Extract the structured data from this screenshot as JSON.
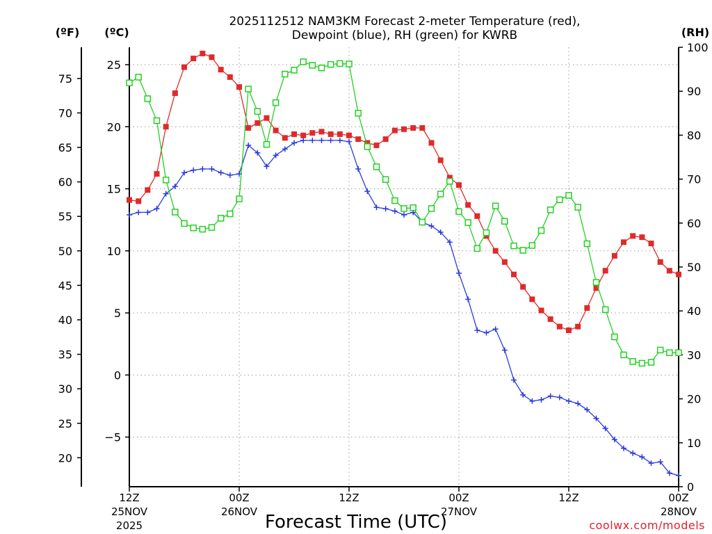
{
  "chart_data": {
    "type": "line",
    "title_lines": [
      "2025112512 NAM3KM Forecast 2-meter Temperature (red),",
      "Dewpoint (blue), RH (green) for KWRB"
    ],
    "xlabel": "Forecast Time (UTC)",
    "credit": "coolwx.com/models",
    "units": {
      "fahrenheit": "(ºF)",
      "celsius": "(ºC)",
      "rh": "(RH)"
    },
    "x_range_hours": [
      0,
      60
    ],
    "celsius_range": [
      -9,
      26.4
    ],
    "rh_range": [
      0,
      100
    ],
    "celsius_ticks": [
      -5,
      0,
      5,
      10,
      15,
      20,
      25
    ],
    "fahrenheit_ticks": [
      20,
      25,
      30,
      35,
      40,
      45,
      50,
      55,
      60,
      65,
      70,
      75
    ],
    "rh_ticks": [
      0,
      10,
      20,
      30,
      40,
      50,
      60,
      70,
      80,
      90,
      100
    ],
    "x_ticks": [
      {
        "hour": 0,
        "label": "12Z",
        "sub": "25NOV",
        "year": "2025"
      },
      {
        "hour": 12,
        "label": "00Z",
        "sub": "26NOV",
        "year": ""
      },
      {
        "hour": 24,
        "label": "12Z",
        "sub": "",
        "year": ""
      },
      {
        "hour": 36,
        "label": "00Z",
        "sub": "27NOV",
        "year": ""
      },
      {
        "hour": 48,
        "label": "12Z",
        "sub": "",
        "year": ""
      },
      {
        "hour": 60,
        "label": "00Z",
        "sub": "28NOV",
        "year": ""
      }
    ],
    "series": [
      {
        "name": "2-meter Temperature",
        "unit": "C",
        "color": "#e02a2a",
        "marker": "filled-square",
        "values": [
          14.1,
          14.0,
          14.9,
          16.2,
          20.0,
          22.7,
          24.8,
          25.5,
          25.9,
          25.6,
          24.6,
          24.0,
          23.2,
          19.9,
          20.3,
          20.7,
          19.7,
          19.1,
          19.4,
          19.3,
          19.5,
          19.6,
          19.4,
          19.4,
          19.3,
          19.0,
          18.7,
          18.5,
          19.0,
          19.7,
          19.8,
          19.9,
          19.9,
          18.7,
          17.3,
          15.9,
          15.3,
          13.7,
          12.8,
          11.2,
          10.0,
          9.1,
          8.1,
          7.1,
          6.1,
          5.2,
          4.5,
          3.9,
          3.6,
          3.9,
          5.4,
          7.0,
          8.4,
          9.6,
          10.7,
          11.2,
          11.1,
          10.6,
          9.1,
          8.4,
          8.1
        ]
      },
      {
        "name": "Dewpoint",
        "unit": "C",
        "color": "#2a3ad8",
        "marker": "plus",
        "values": [
          12.9,
          13.1,
          13.1,
          13.4,
          14.6,
          15.2,
          16.3,
          16.5,
          16.6,
          16.6,
          16.3,
          16.1,
          16.2,
          18.5,
          17.9,
          16.8,
          17.7,
          18.2,
          18.7,
          18.9,
          18.9,
          18.9,
          18.9,
          18.9,
          18.8,
          16.6,
          14.8,
          13.5,
          13.4,
          13.2,
          12.9,
          13.1,
          12.3,
          12.0,
          11.5,
          10.7,
          8.2,
          6.1,
          3.6,
          3.4,
          3.7,
          2.0,
          -0.4,
          -1.6,
          -2.1,
          -2.0,
          -1.7,
          -1.8,
          -2.1,
          -2.3,
          -2.8,
          -3.5,
          -4.3,
          -5.2,
          -5.9,
          -6.3,
          -6.6,
          -7.1,
          -7.0,
          -7.9,
          -8.1
        ]
      },
      {
        "name": "RH",
        "unit": "%",
        "color": "#22d022",
        "marker": "open-square",
        "values": [
          91.9,
          93.2,
          88.3,
          83.3,
          69.8,
          62.5,
          59.9,
          58.9,
          58.6,
          59.0,
          61.1,
          62.1,
          65.5,
          90.5,
          85.4,
          77.9,
          87.4,
          93.9,
          94.8,
          96.7,
          95.9,
          95.3,
          96.1,
          96.3,
          96.2,
          85.0,
          77.4,
          72.8,
          69.9,
          65.1,
          63.3,
          63.5,
          60.2,
          63.3,
          66.6,
          69.5,
          62.6,
          60.1,
          54.2,
          57.8,
          63.9,
          60.4,
          54.8,
          53.8,
          54.9,
          58.3,
          63.0,
          65.3,
          66.3,
          63.6,
          55.3,
          46.5,
          40.3,
          34.1,
          30.0,
          28.5,
          28.1,
          28.3,
          31.1,
          30.5,
          30.5
        ]
      }
    ]
  }
}
